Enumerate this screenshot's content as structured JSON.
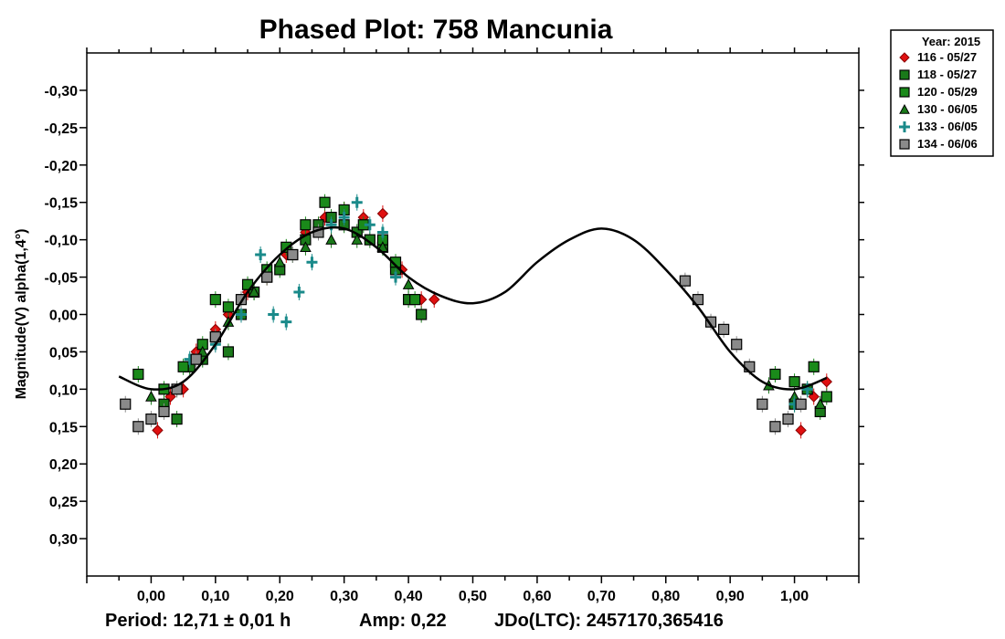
{
  "chart_data": {
    "type": "scatter",
    "title": "Phased Plot: 758 Mancunia",
    "xlabel": "",
    "ylabel": "Magnitude(V) alpha(1,4°)",
    "xlim": [
      -0.1,
      1.1
    ],
    "ylim": [
      -0.35,
      0.35
    ],
    "y_inverted": true,
    "x_ticks": [
      0.0,
      0.1,
      0.2,
      0.3,
      0.4,
      0.5,
      0.6,
      0.7,
      0.8,
      0.9,
      1.0
    ],
    "x_tick_labels": [
      "0,00",
      "0,10",
      "0,20",
      "0,30",
      "0,40",
      "0,50",
      "0,60",
      "0,70",
      "0,80",
      "0,90",
      "1,00"
    ],
    "y_ticks": [
      -0.3,
      -0.25,
      -0.2,
      -0.15,
      -0.1,
      -0.05,
      0.0,
      0.05,
      0.1,
      0.15,
      0.2,
      0.25,
      0.3
    ],
    "y_tick_labels": [
      "-0,30",
      "-0,25",
      "-0,20",
      "-0,15",
      "-0,10",
      "-0,05",
      "0,00",
      "0,05",
      "0,10",
      "0,15",
      "0,20",
      "0,25",
      "0,30"
    ],
    "legend_title": "Year: 2015",
    "legend_position": "outside-top-right",
    "footer": {
      "period": "Period: 12,71 ± 0,01 h",
      "amp": "Amp: 0,22",
      "jdo": "JDo(LTC): 2457170,365416"
    },
    "fit_curve": {
      "name": "fourier-fit",
      "color": "#000000",
      "x": [
        -0.05,
        0.0,
        0.05,
        0.1,
        0.15,
        0.2,
        0.25,
        0.3,
        0.35,
        0.4,
        0.45,
        0.5,
        0.55,
        0.6,
        0.65,
        0.7,
        0.75,
        0.8,
        0.85,
        0.9,
        0.95,
        1.0,
        1.05
      ],
      "y": [
        0.083,
        0.1,
        0.09,
        0.04,
        -0.03,
        -0.08,
        -0.11,
        -0.115,
        -0.09,
        -0.05,
        -0.025,
        -0.015,
        -0.03,
        -0.07,
        -0.1,
        -0.115,
        -0.1,
        -0.06,
        -0.01,
        0.05,
        0.09,
        0.1,
        0.085
      ]
    },
    "series": [
      {
        "name": "116 - 05/27",
        "marker": "diamond",
        "color": "#e01010",
        "x": [
          0.01,
          0.03,
          0.05,
          0.07,
          0.1,
          0.12,
          0.15,
          0.18,
          0.21,
          0.24,
          0.27,
          0.3,
          0.33,
          0.36,
          0.39,
          0.42,
          0.44,
          1.01,
          1.03,
          1.05
        ],
        "y": [
          0.155,
          0.11,
          0.1,
          0.05,
          0.02,
          0.0,
          -0.03,
          -0.05,
          -0.08,
          -0.11,
          -0.13,
          -0.14,
          -0.13,
          -0.135,
          -0.06,
          -0.02,
          -0.02,
          0.155,
          0.11,
          0.09
        ]
      },
      {
        "name": "118 - 05/27",
        "marker": "square",
        "color": "#1a7a1a",
        "x": [
          0.02,
          0.04,
          0.06,
          0.08,
          0.1,
          0.12,
          0.14,
          0.16,
          0.18,
          0.2,
          0.22,
          0.24,
          0.26,
          0.28,
          0.3,
          0.32,
          0.34,
          0.36,
          0.38,
          0.4,
          0.42,
          1.0,
          1.02,
          1.04
        ],
        "y": [
          0.12,
          0.14,
          0.07,
          0.06,
          0.03,
          0.05,
          0.0,
          -0.03,
          -0.05,
          -0.06,
          -0.08,
          -0.1,
          -0.12,
          -0.13,
          -0.12,
          -0.11,
          -0.1,
          -0.09,
          -0.06,
          -0.02,
          0.0,
          0.12,
          0.1,
          0.13
        ]
      },
      {
        "name": "120 - 05/29",
        "marker": "square",
        "color": "#1a8a1a",
        "x": [
          -0.02,
          0.02,
          0.05,
          0.08,
          0.1,
          0.12,
          0.15,
          0.18,
          0.21,
          0.24,
          0.27,
          0.3,
          0.33,
          0.36,
          0.38,
          0.41,
          0.97,
          1.0,
          1.03,
          1.05
        ],
        "y": [
          0.08,
          0.1,
          0.07,
          0.04,
          -0.02,
          -0.01,
          -0.04,
          -0.06,
          -0.09,
          -0.12,
          -0.15,
          -0.14,
          -0.12,
          -0.1,
          -0.07,
          -0.02,
          0.08,
          0.09,
          0.07,
          0.11
        ]
      },
      {
        "name": "130 - 06/05",
        "marker": "triangle",
        "color": "#1a7a1a",
        "x": [
          0.0,
          0.04,
          0.08,
          0.12,
          0.16,
          0.2,
          0.24,
          0.28,
          0.32,
          0.36,
          0.4,
          0.96,
          1.0,
          1.04
        ],
        "y": [
          0.11,
          0.1,
          0.05,
          0.01,
          -0.03,
          -0.07,
          -0.09,
          -0.1,
          -0.1,
          -0.09,
          -0.04,
          0.095,
          0.11,
          0.12
        ]
      },
      {
        "name": "133 - 06/05",
        "marker": "plus",
        "color": "#1a8a8a",
        "x": [
          0.06,
          0.1,
          0.14,
          0.17,
          0.19,
          0.21,
          0.23,
          0.25,
          0.28,
          0.3,
          0.32,
          0.34,
          0.36,
          0.38,
          1.0,
          1.02
        ],
        "y": [
          0.06,
          0.04,
          0.0,
          -0.08,
          0.0,
          0.01,
          -0.03,
          -0.07,
          -0.12,
          -0.13,
          -0.15,
          -0.12,
          -0.11,
          -0.05,
          0.12,
          0.1
        ]
      },
      {
        "name": "134 - 06/06",
        "marker": "square",
        "color": "#8a8a8a",
        "x": [
          -0.04,
          -0.02,
          0.0,
          0.02,
          0.04,
          0.07,
          0.1,
          0.14,
          0.18,
          0.22,
          0.26,
          0.83,
          0.85,
          0.87,
          0.89,
          0.91,
          0.93,
          0.95,
          0.97,
          0.99,
          1.01
        ],
        "y": [
          0.12,
          0.15,
          0.14,
          0.13,
          0.1,
          0.06,
          0.03,
          -0.02,
          -0.05,
          -0.08,
          -0.11,
          -0.045,
          -0.02,
          0.01,
          0.02,
          0.04,
          0.07,
          0.12,
          0.15,
          0.14,
          0.12
        ]
      }
    ]
  }
}
